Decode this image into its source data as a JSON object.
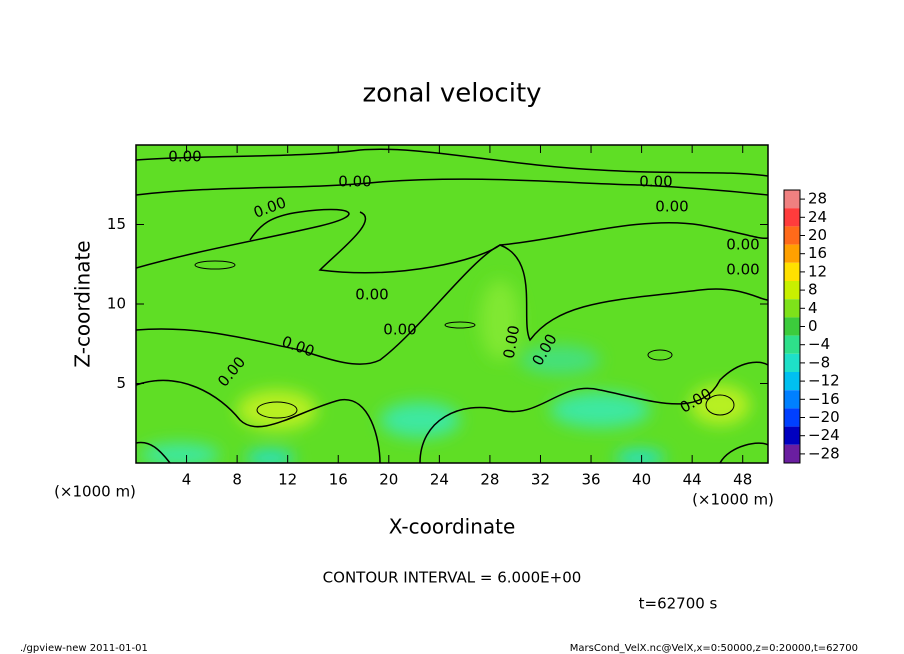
{
  "chart_data": {
    "type": "contour",
    "title": "zonal velocity",
    "x_label": "X-coordinate",
    "y_label": "Z-coordinate",
    "x_unit_label": "(×1000 m)",
    "xlim": [
      0,
      50
    ],
    "xticks": [
      4,
      8,
      12,
      16,
      20,
      24,
      28,
      32,
      36,
      40,
      44,
      48
    ],
    "ylim": [
      0,
      20
    ],
    "yticks": [
      5,
      10,
      15
    ],
    "field_color": "#5fde25",
    "line_color": "#000000",
    "contour_labels": [
      "0.00",
      "0.00",
      "0.00",
      "0.00",
      "0.00",
      "0.00",
      "0.00",
      "0.00",
      "0.00",
      "0.00",
      "0.00",
      "0.00",
      "0.00",
      "0.00"
    ],
    "colorbar": {
      "lim": [
        -30,
        30
      ],
      "ticks": [
        28,
        24,
        20,
        16,
        12,
        8,
        4,
        0,
        {
          "value": -4,
          "label": "−4"
        },
        {
          "value": -8,
          "label": "−8"
        },
        {
          "value": -12,
          "label": "−12"
        },
        {
          "value": -16,
          "label": "−16"
        },
        {
          "value": -20,
          "label": "−20"
        },
        {
          "value": -24,
          "label": "−24"
        },
        {
          "value": -28,
          "label": "−28"
        }
      ],
      "colors": [
        "#f08080",
        "#ff3c3c",
        "#ff6a1a",
        "#ffa000",
        "#ffe000",
        "#c8f000",
        "#7ee21a",
        "#3ccc3c",
        "#2ee08a",
        "#1ee0c8",
        "#00c0f0",
        "#0080ff",
        "#0040ff",
        "#0000c0",
        "#6a1ea0"
      ]
    },
    "contour_interval_text": "CONTOUR INTERVAL = 6.000E+00",
    "time_text": "t=62700 s",
    "footer_left": "./gpview-new  2011-01-01",
    "footer_right": "MarsCond_VelX.nc@VelX,x=0:50000,z=0:20000,t=62700"
  }
}
